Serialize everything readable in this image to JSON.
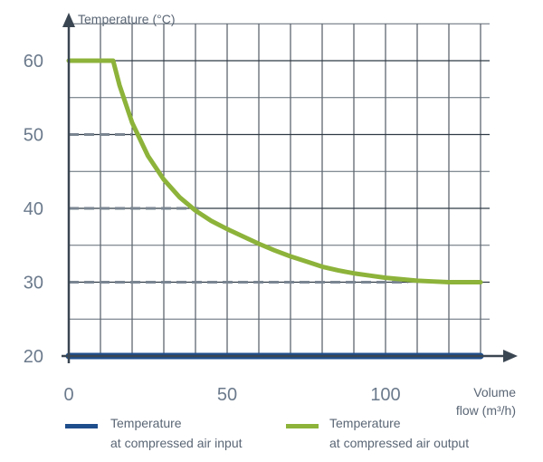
{
  "chart_data": {
    "type": "line",
    "xlabel": [
      "Volume",
      "flow (m³/h)"
    ],
    "ylabel": "Temperature (°C)",
    "xlim": [
      0,
      130
    ],
    "ylim": [
      20,
      65
    ],
    "x_ticks": [
      0,
      50,
      100
    ],
    "y_ticks": [
      20,
      30,
      40,
      50,
      60
    ],
    "x_grid_step": 10,
    "y_grid_step": 5,
    "grid": true,
    "legend_position": "bottom",
    "series": [
      {
        "name_line1": "Temperature",
        "name_line2": "at compressed air input",
        "color": "#1f4e8c",
        "x": [
          0,
          130
        ],
        "y": [
          20,
          20
        ]
      },
      {
        "name_line1": "Temperature",
        "name_line2": "at compressed air output",
        "color": "#8db33a",
        "x": [
          0,
          14,
          16,
          20,
          25,
          30,
          35,
          40,
          45,
          50,
          55,
          60,
          65,
          70,
          75,
          80,
          85,
          90,
          95,
          100,
          105,
          110,
          115,
          120,
          130
        ],
        "y": [
          60,
          60,
          56.7,
          51.6,
          47.1,
          43.9,
          41.5,
          39.7,
          38.3,
          37.2,
          36.2,
          35.2,
          34.3,
          33.5,
          32.8,
          32.1,
          31.6,
          31.2,
          30.9,
          30.6,
          30.4,
          30.2,
          30.1,
          30.0,
          30.0
        ]
      }
    ],
    "reference_lines": [
      {
        "y": 50,
        "x_end": 20
      },
      {
        "y": 40,
        "x_end": 41
      },
      {
        "y": 30,
        "x_end": 107
      }
    ]
  }
}
